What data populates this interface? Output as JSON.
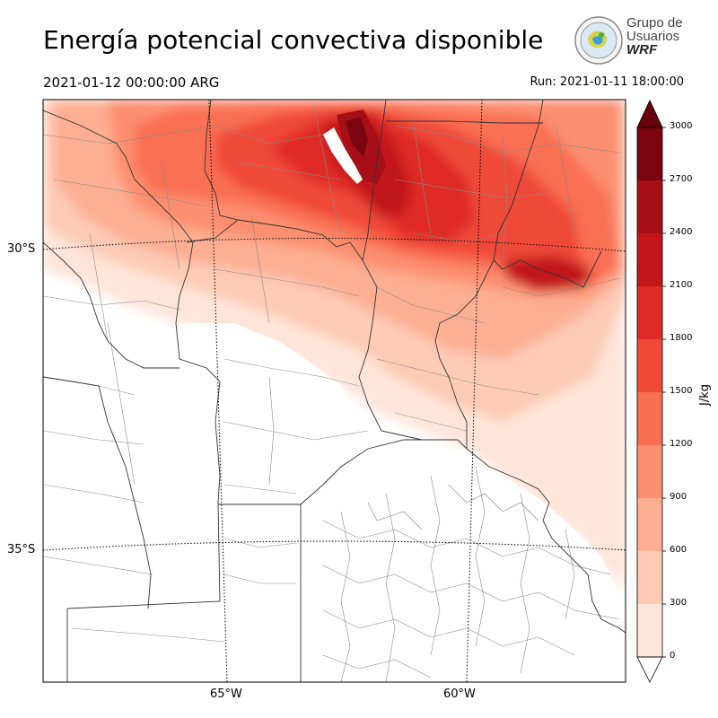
{
  "title": "Energía potencial convectiva disponible",
  "valid_time": "2021-01-12 00:00:00 ARG",
  "run_time": "Run: 2021-01-11 18:00:00",
  "logo": {
    "line1": "Grupo de",
    "line2": "Usuarios",
    "line3": "WRF"
  },
  "lat_labels": [
    "30°S",
    "35°S"
  ],
  "lon_labels": [
    "65°W",
    "60°W"
  ],
  "colorbar": {
    "unit": "J/kg",
    "ticks": [
      "0",
      "300",
      "600",
      "900",
      "1200",
      "1500",
      "1800",
      "2100",
      "2400",
      "2700",
      "3000"
    ],
    "colors": [
      "#fee5d9",
      "#fdcbb6",
      "#fcaf93",
      "#fc8f6f",
      "#f96f52",
      "#ef4a38",
      "#df2a26",
      "#c1151b",
      "#a50f15",
      "#7a0510"
    ],
    "extend_color": "#67000d"
  }
}
